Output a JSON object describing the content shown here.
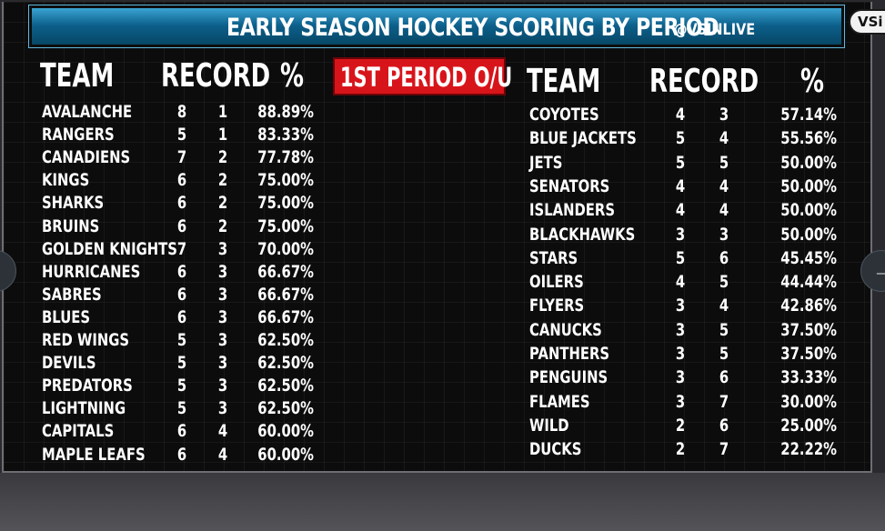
{
  "banner": {
    "title": "EARLY SEASON HOCKEY SCORING BY PERIOD",
    "handle": "@VSINLIVE"
  },
  "logo_text": "VSi",
  "nav": {
    "next_arrow": "→"
  },
  "badge": "1ST PERIOD O/U",
  "colors": {
    "banner": "#0c5f8a",
    "badge": "#d8141b",
    "background": "#0c0c0d"
  },
  "left_table": {
    "headers": {
      "team": "TEAM",
      "record": "RECORD",
      "pct": "%"
    },
    "rows": [
      {
        "team": "AVALANCHE",
        "w": "8",
        "l": "1",
        "pct": "88.89%"
      },
      {
        "team": "RANGERS",
        "w": "5",
        "l": "1",
        "pct": "83.33%"
      },
      {
        "team": "CANADIENS",
        "w": "7",
        "l": "2",
        "pct": "77.78%"
      },
      {
        "team": "KINGS",
        "w": "6",
        "l": "2",
        "pct": "75.00%"
      },
      {
        "team": "SHARKS",
        "w": "6",
        "l": "2",
        "pct": "75.00%"
      },
      {
        "team": "BRUINS",
        "w": "6",
        "l": "2",
        "pct": "75.00%"
      },
      {
        "team": "GOLDEN KNIGHTS",
        "w": "7",
        "l": "3",
        "pct": "70.00%"
      },
      {
        "team": "HURRICANES",
        "w": "6",
        "l": "3",
        "pct": "66.67%"
      },
      {
        "team": "SABRES",
        "w": "6",
        "l": "3",
        "pct": "66.67%"
      },
      {
        "team": "BLUES",
        "w": "6",
        "l": "3",
        "pct": "66.67%"
      },
      {
        "team": "RED WINGS",
        "w": "5",
        "l": "3",
        "pct": "62.50%"
      },
      {
        "team": "DEVILS",
        "w": "5",
        "l": "3",
        "pct": "62.50%"
      },
      {
        "team": "PREDATORS",
        "w": "5",
        "l": "3",
        "pct": "62.50%"
      },
      {
        "team": "LIGHTNING",
        "w": "5",
        "l": "3",
        "pct": "62.50%"
      },
      {
        "team": "CAPITALS",
        "w": "6",
        "l": "4",
        "pct": "60.00%"
      },
      {
        "team": "MAPLE LEAFS",
        "w": "6",
        "l": "4",
        "pct": "60.00%"
      }
    ]
  },
  "right_table": {
    "headers": {
      "team": "TEAM",
      "record": "RECORD",
      "pct": "%"
    },
    "rows": [
      {
        "team": "COYOTES",
        "w": "4",
        "l": "3",
        "pct": "57.14%"
      },
      {
        "team": "BLUE JACKETS",
        "w": "5",
        "l": "4",
        "pct": "55.56%"
      },
      {
        "team": "JETS",
        "w": "5",
        "l": "5",
        "pct": "50.00%"
      },
      {
        "team": "SENATORS",
        "w": "4",
        "l": "4",
        "pct": "50.00%"
      },
      {
        "team": "ISLANDERS",
        "w": "4",
        "l": "4",
        "pct": "50.00%"
      },
      {
        "team": "BLACKHAWKS",
        "w": "3",
        "l": "3",
        "pct": "50.00%"
      },
      {
        "team": "STARS",
        "w": "5",
        "l": "6",
        "pct": "45.45%"
      },
      {
        "team": "OILERS",
        "w": "4",
        "l": "5",
        "pct": "44.44%"
      },
      {
        "team": "FLYERS",
        "w": "3",
        "l": "4",
        "pct": "42.86%"
      },
      {
        "team": "CANUCKS",
        "w": "3",
        "l": "5",
        "pct": "37.50%"
      },
      {
        "team": "PANTHERS",
        "w": "3",
        "l": "5",
        "pct": "37.50%"
      },
      {
        "team": "PENGUINS",
        "w": "3",
        "l": "6",
        "pct": "33.33%"
      },
      {
        "team": "FLAMES",
        "w": "3",
        "l": "7",
        "pct": "30.00%"
      },
      {
        "team": "WILD",
        "w": "2",
        "l": "6",
        "pct": "25.00%"
      },
      {
        "team": "DUCKS",
        "w": "2",
        "l": "7",
        "pct": "22.22%"
      }
    ]
  }
}
